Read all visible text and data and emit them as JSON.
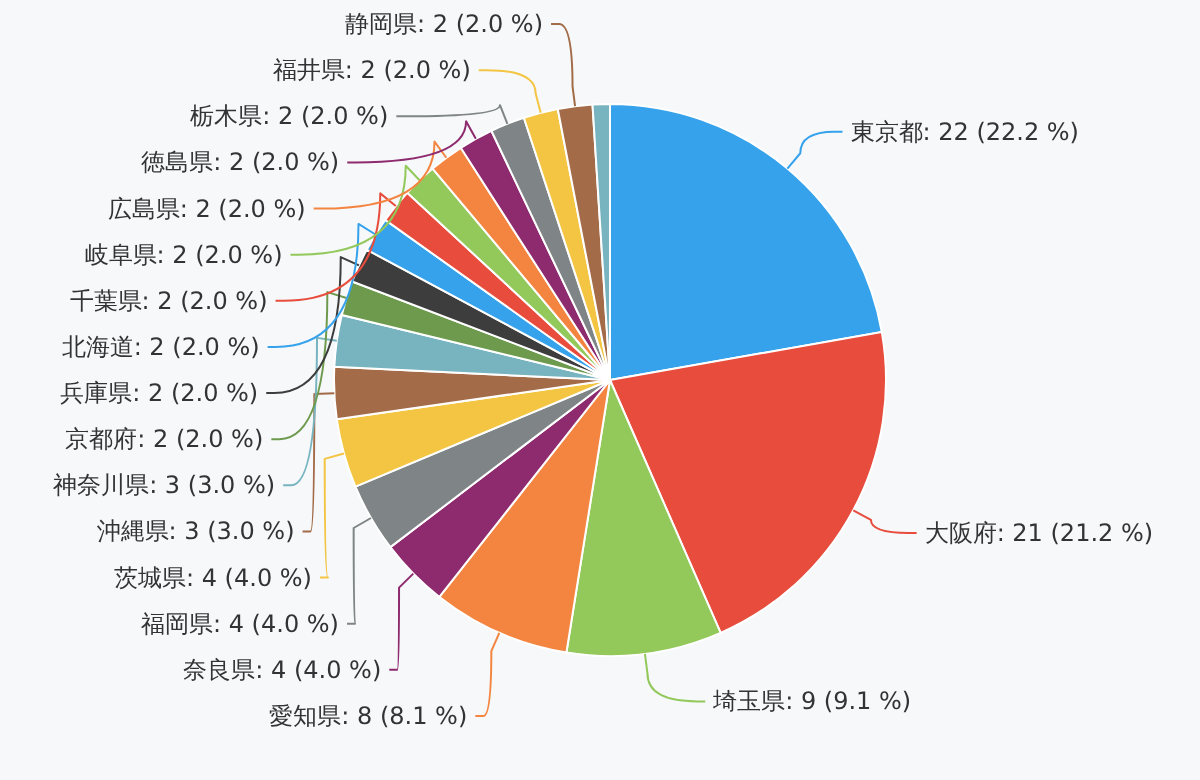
{
  "chart_data": {
    "type": "pie",
    "categories": [
      "東京都",
      "大阪府",
      "埼玉県",
      "愛知県",
      "奈良県",
      "福岡県",
      "茨城県",
      "沖縄県",
      "神奈川県",
      "京都府",
      "兵庫県",
      "北海道",
      "千葉県",
      "岐阜県",
      "広島県",
      "徳島県",
      "栃木県",
      "福井県",
      "静岡県",
      null
    ],
    "values": [
      22,
      21,
      9,
      8,
      4,
      4,
      4,
      3,
      3,
      2,
      2,
      2,
      2,
      2,
      2,
      2,
      2,
      2,
      2,
      1
    ],
    "value_labels": [
      "22 (22.2 %)",
      "21 (21.2 %)",
      "9 (9.1 %)",
      "8 (8.1 %)",
      "4 (4.0 %)",
      "4 (4.0 %)",
      "4 (4.0 %)",
      "3 (3.0 %)",
      "3 (3.0 %)",
      "2 (2.0 %)",
      "2 (2.0 %)",
      "2 (2.0 %)",
      "2 (2.0 %)",
      "2 (2.0 %)",
      "2 (2.0 %)",
      "2 (2.0 %)",
      "2 (2.0 %)",
      "2 (2.0 %)",
      "2 (2.0 %)",
      null
    ],
    "colors": [
      "#36a2eb",
      "#e74c3c",
      "#93c85a",
      "#f48540",
      "#8e2a6e",
      "#7f8586",
      "#f4c542",
      "#a36b47",
      "#77b4bf",
      "#6e9a4e",
      "#3d3d3d",
      "#36a2eb",
      "#e74c3c",
      "#93c85a",
      "#f48540",
      "#8e2a6e",
      "#7f8586",
      "#f4c542",
      "#a36b47",
      "#77b4bf"
    ]
  }
}
